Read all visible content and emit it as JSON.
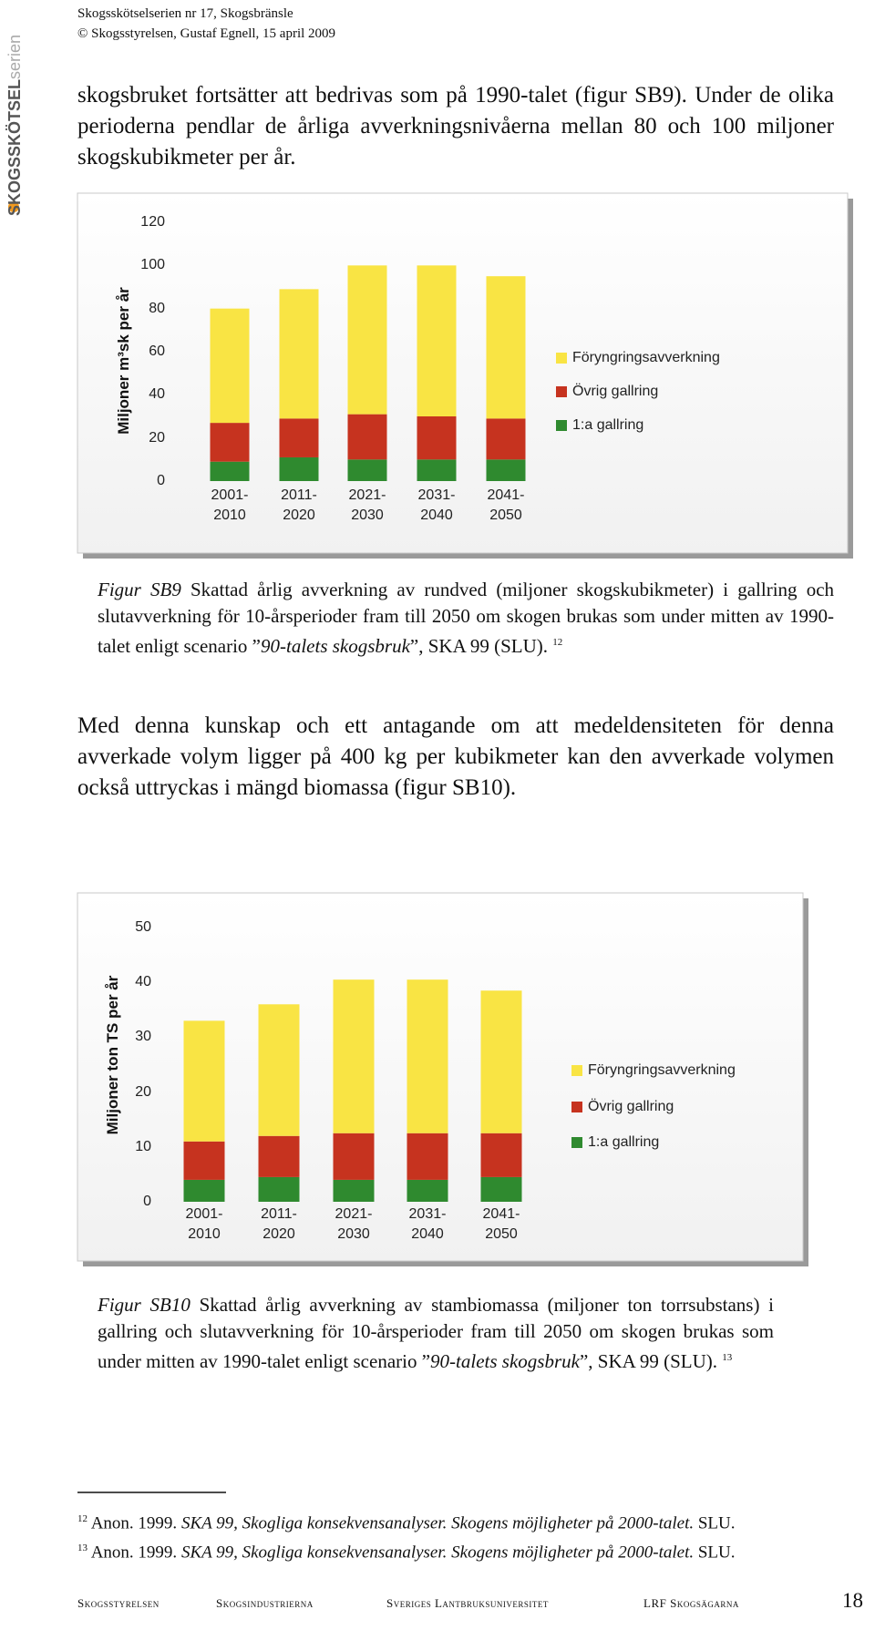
{
  "header": {
    "series": "Skogsskötselserien nr 17, Skogsbränsle",
    "copyright": "© Skogsstyrelsen, Gustaf Egnell, 15 april 2009"
  },
  "logo": {
    "brand": "SKOGSSKÖTSEL",
    "suffix": "serien"
  },
  "paragraphs": [
    "skogsbruket fortsätter att bedrivas som på 1990-talet (figur SB9). Under de olika perioderna pendlar de årliga avverkningsnivåerna mellan 80 och 100 miljoner skogskubikmeter per år.",
    "Med denna kunskap och ett antagande om att medeldensiteten för denna avverkade volym ligger på 400 kg per kubikmeter kan den avverkade volymen också uttryckas i mängd biomassa (figur SB10)."
  ],
  "chart_data": [
    {
      "type": "bar",
      "stacked": true,
      "y_label": "Miljoner m³sk per år",
      "categories": [
        "2001-\n2010",
        "2011-\n2020",
        "2021-\n2030",
        "2031-\n2040",
        "2041-\n2050"
      ],
      "series": [
        {
          "name": "1:a gallring",
          "color": "#2f8a2f",
          "values": [
            9,
            11,
            10,
            10,
            10
          ]
        },
        {
          "name": "Övrig gallring",
          "color": "#c6331f",
          "values": [
            18,
            18,
            21,
            20,
            19
          ]
        },
        {
          "name": "Föryngringsavverkning",
          "color": "#f9e444",
          "values": [
            53,
            60,
            69,
            70,
            66
          ]
        }
      ],
      "ylim": [
        0,
        120
      ],
      "yticks": [
        0,
        20,
        40,
        60,
        80,
        100,
        120
      ],
      "legend": "right"
    },
    {
      "type": "bar",
      "stacked": true,
      "y_label": "Miljoner ton TS per år",
      "categories": [
        "2001-\n2010",
        "2011-\n2020",
        "2021-\n2030",
        "2031-\n2040",
        "2041-\n2050"
      ],
      "series": [
        {
          "name": "1:a gallring",
          "color": "#2f8a2f",
          "values": [
            4,
            4.5,
            4,
            4,
            4.5
          ]
        },
        {
          "name": "Övrig gallring",
          "color": "#c6331f",
          "values": [
            7,
            7.5,
            8.5,
            8.5,
            8
          ]
        },
        {
          "name": "Föryngringsavverkning",
          "color": "#f9e444",
          "values": [
            22,
            24,
            28,
            28,
            26
          ]
        }
      ],
      "ylim": [
        0,
        50
      ],
      "yticks": [
        0,
        10,
        20,
        30,
        40,
        50
      ],
      "legend": "right"
    }
  ],
  "captions": [
    {
      "label": "Figur SB9",
      "body": "Skattad årlig avverkning av rundved (miljoner skogskubikmeter) i gallring och slutavverkning för 10-årsperioder fram till 2050 om skogen brukas som under mitten av 1990-talet enligt scenario ”",
      "emph": "90-talets skogsbruk",
      "tail": "”, SKA 99 (SLU).",
      "note": "12"
    },
    {
      "label": "Figur SB10",
      "body": "Skattad årlig avverkning av stambiomassa (miljoner ton torrsubstans) i gallring och slutavverkning för 10-årsperioder fram till 2050 om skogen brukas som under mitten av 1990-talet enligt scenario ”",
      "emph": "90-talets skogsbruk",
      "tail": "”, SKA 99 (SLU).",
      "note": "13"
    }
  ],
  "footnotes": [
    {
      "number": "12",
      "author": "Anon. 1999.",
      "title": "SKA 99, Skogliga konsekvensanalyser. Skogens möjligheter på 2000-talet.",
      "publisher": "SLU."
    },
    {
      "number": "13",
      "author": "Anon. 1999.",
      "title": "SKA 99, Skogliga konsekvensanalyser. Skogens möjligheter på 2000-talet.",
      "publisher": "SLU."
    }
  ],
  "footer": {
    "organizations": [
      "Skogsstyrelsen",
      "Skogsindustrierna",
      "Sveriges Lantbruksuniversitet",
      "LRF Skogsägarna"
    ],
    "page": "18"
  }
}
